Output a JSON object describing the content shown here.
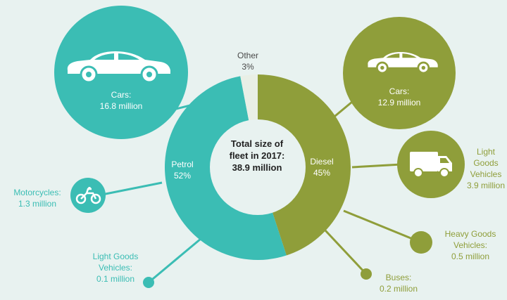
{
  "center_text": {
    "line1": "Total size of",
    "line2": "fleet in 2017:",
    "line3": "38.9 million"
  },
  "colors": {
    "petrol": "#3bbdb4",
    "diesel": "#8f9e3a",
    "other": "#e9efe6",
    "background": "#e8f2f0"
  },
  "chart_data": {
    "type": "pie",
    "title": "Total size of fleet in 2017: 38.9 million",
    "slices": [
      {
        "label": "Petrol",
        "value": 52,
        "display": "52%"
      },
      {
        "label": "Diesel",
        "value": 45,
        "display": "45%"
      },
      {
        "label": "Other",
        "value": 3,
        "display": "3%"
      }
    ],
    "breakdown": {
      "petrol": [
        {
          "category": "Cars:",
          "value": "16.8 million",
          "icon": "car-icon"
        },
        {
          "category": "Motorcycles:",
          "value": "1.3 million",
          "icon": "motorcycle-icon"
        },
        {
          "category_line1": "Light Goods",
          "category_line2": "Vehicles:",
          "value": "0.1 million"
        }
      ],
      "diesel": [
        {
          "category": "Cars:",
          "value": "12.9 million",
          "icon": "car-icon"
        },
        {
          "category_line1": "Light",
          "category_line2": "Goods",
          "category_line3": "Vehicles",
          "value": "3.9 million",
          "icon": "van-icon"
        },
        {
          "category_line1": "Heavy Goods",
          "category_line2": "Vehicles:",
          "value": "0.5 million"
        },
        {
          "category": "Buses:",
          "value": "0.2 million"
        }
      ]
    }
  }
}
